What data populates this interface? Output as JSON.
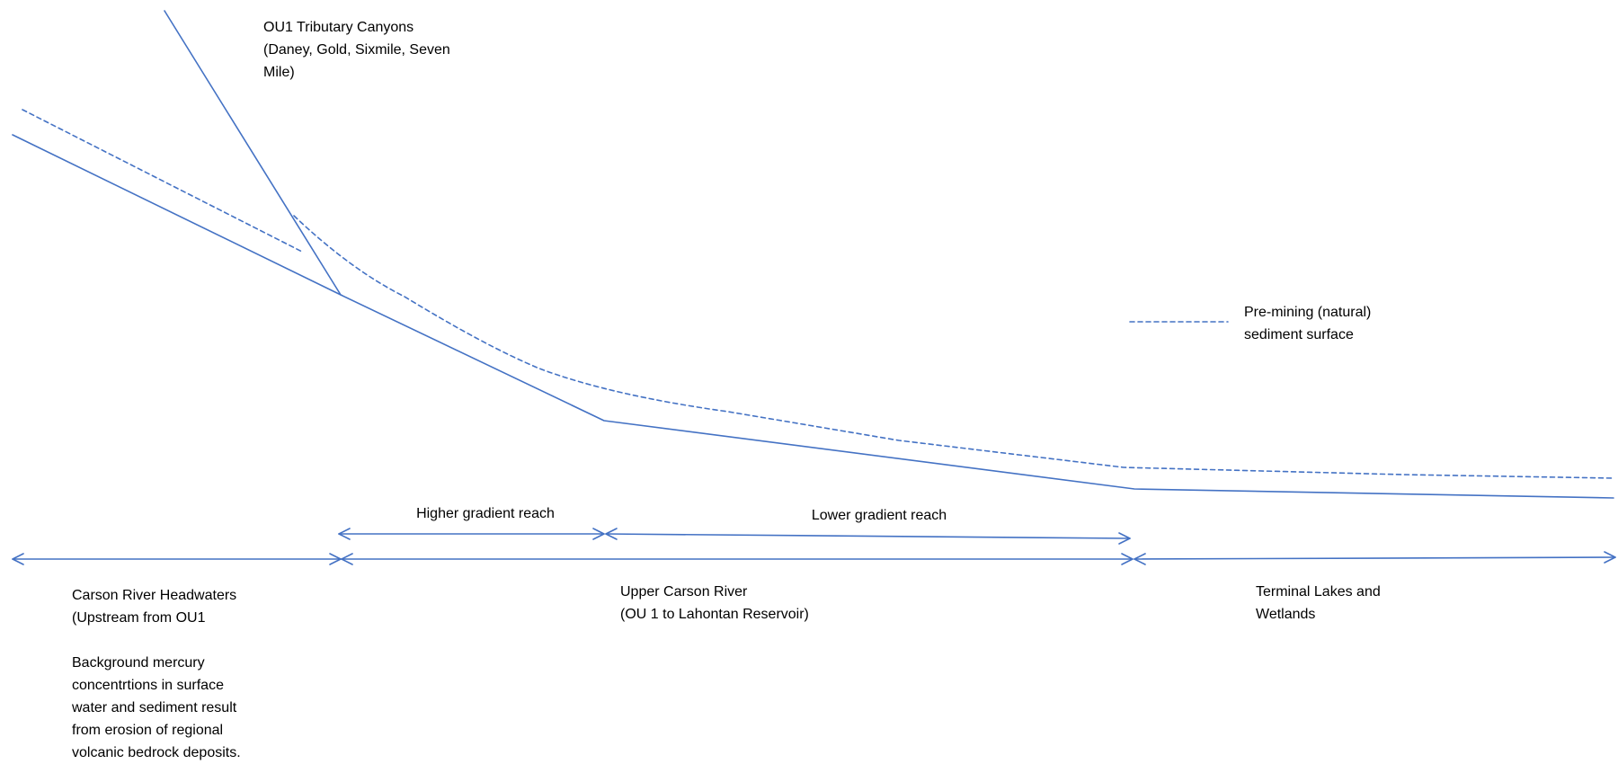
{
  "colors": {
    "line": "#4472c4",
    "text": "#000000",
    "background": "#ffffff"
  },
  "labels": {
    "tributary": "OU1 Tributary Canyons\n(Daney, Gold, Sixmile, Seven\nMile)",
    "legend": "Pre-mining (natural)\nsediment surface",
    "higher_reach": "Higher gradient reach",
    "lower_reach": "Lower gradient reach",
    "headwaters": "Carson River Headwaters\n(Upstream from OU1\n\nBackground mercury\nconcentrtions in surface\nwater and sediment result\nfrom erosion of regional\nvolcanic bedrock deposits.",
    "upper_carson": "Upper Carson River\n(OU 1 to Lahontan Reservoir)",
    "terminal_lakes": "Terminal Lakes and\nWetlands"
  },
  "legend": {
    "line_style": "dashed",
    "meaning_ref": "labels.legend"
  }
}
